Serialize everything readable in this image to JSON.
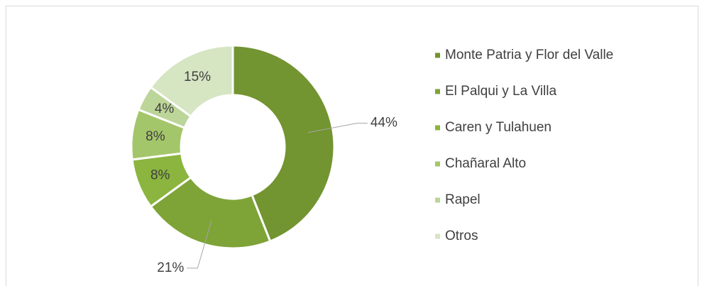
{
  "chart_data": {
    "type": "donut",
    "categories": [
      "Monte Patria y Flor del Valle",
      "El Palqui y La Villa",
      "Caren y Tulahuen",
      "Chañaral Alto",
      "Rapel",
      "Otros"
    ],
    "values": [
      44,
      21,
      8,
      8,
      4,
      15
    ],
    "value_labels": [
      "44%",
      "21%",
      "8%",
      "8%",
      "4%",
      "15%"
    ],
    "colors": [
      "#729431",
      "#7ea337",
      "#8bb53f",
      "#a4c66a",
      "#bcd598",
      "#d6e5c2"
    ],
    "legend": "right"
  }
}
